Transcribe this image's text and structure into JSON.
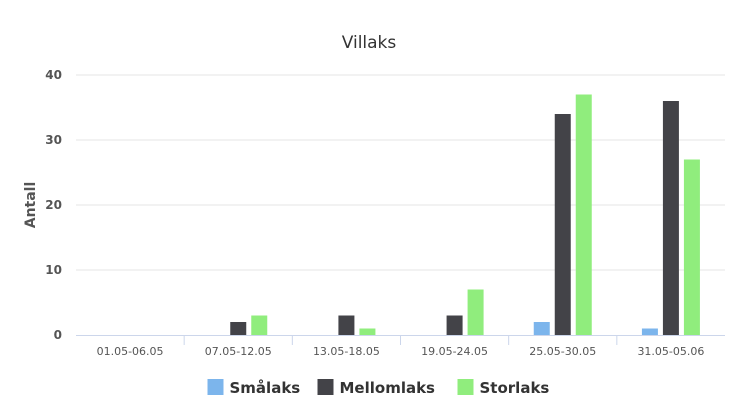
{
  "chart_data": {
    "type": "bar",
    "title": "Villaks",
    "xlabel": "",
    "ylabel": "Antall",
    "ylim": [
      0,
      40
    ],
    "yticks": [
      0,
      10,
      20,
      30,
      40
    ],
    "categories": [
      "01.05-06.05",
      "07.05-12.05",
      "13.05-18.05",
      "19.05-24.05",
      "25.05-30.05",
      "31.05-05.06"
    ],
    "series": [
      {
        "name": "Smålaks",
        "color": "#7cb5ec",
        "values": [
          0,
          0,
          0,
          0,
          2,
          1
        ]
      },
      {
        "name": "Mellomlaks",
        "color": "#434348",
        "values": [
          0,
          2,
          3,
          3,
          34,
          36
        ]
      },
      {
        "name": "Storlaks",
        "color": "#90ed7d",
        "values": [
          0,
          3,
          1,
          7,
          37,
          27
        ]
      }
    ],
    "grid": true,
    "legend_position": "bottom-center"
  }
}
